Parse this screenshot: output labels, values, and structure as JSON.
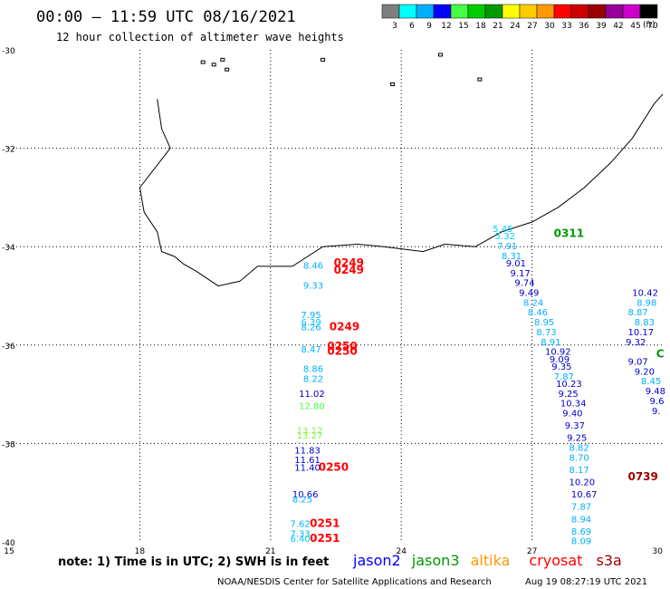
{
  "header": {
    "title": "00:00 — 11:59 UTC 08/16/2021",
    "subtitle": "12 hour collection of altimeter wave heights"
  },
  "colorbar": {
    "unit": "(ft)",
    "labels": [
      "3",
      "6",
      "9",
      "12",
      "15",
      "18",
      "21",
      "24",
      "27",
      "30",
      "33",
      "36",
      "39",
      "42",
      "45",
      "70"
    ],
    "colors": [
      "#7f7f7f",
      "#00ffff",
      "#00b0ff",
      "#0000ff",
      "#44ff44",
      "#00cc00",
      "#009900",
      "#ffff00",
      "#ffcc00",
      "#ff9900",
      "#ff0000",
      "#cc0000",
      "#990000",
      "#990099",
      "#cc00cc",
      "#000000"
    ]
  },
  "map": {
    "lon_range": [
      15,
      30
    ],
    "lat_range": [
      -40,
      -30
    ],
    "x_ticks": [
      15,
      18,
      21,
      24,
      27,
      30
    ],
    "y_ticks": [
      -30,
      -32,
      -34,
      -36,
      -38,
      -40
    ],
    "coast": [
      [
        18.4,
        -31.0
      ],
      [
        18.5,
        -31.6
      ],
      [
        18.7,
        -32.0
      ],
      [
        18.0,
        -32.8
      ],
      [
        18.1,
        -33.3
      ],
      [
        18.4,
        -33.7
      ],
      [
        18.5,
        -34.1
      ],
      [
        18.8,
        -34.2
      ],
      [
        19.0,
        -34.35
      ],
      [
        19.3,
        -34.5
      ],
      [
        19.8,
        -34.8
      ],
      [
        20.3,
        -34.7
      ],
      [
        20.7,
        -34.4
      ],
      [
        21.5,
        -34.4
      ],
      [
        22.2,
        -34.0
      ],
      [
        23.0,
        -33.95
      ],
      [
        23.6,
        -34.0
      ],
      [
        24.5,
        -34.1
      ],
      [
        25.0,
        -33.95
      ],
      [
        25.7,
        -34.0
      ],
      [
        26.3,
        -33.7
      ],
      [
        27.0,
        -33.5
      ],
      [
        27.6,
        -33.2
      ],
      [
        28.2,
        -32.8
      ],
      [
        28.8,
        -32.3
      ],
      [
        29.3,
        -31.8
      ],
      [
        29.8,
        -31.1
      ],
      [
        30.0,
        -30.9
      ]
    ],
    "islands": [
      [
        19.45,
        -30.25
      ],
      [
        19.7,
        -30.3
      ],
      [
        19.9,
        -30.2
      ],
      [
        20.0,
        -30.4
      ],
      [
        22.2,
        -30.2
      ],
      [
        23.8,
        -30.7
      ],
      [
        24.9,
        -30.1
      ],
      [
        25.8,
        -30.6
      ]
    ]
  },
  "observations": [
    {
      "lon": 21.75,
      "lat": -34.45,
      "text": "8.46",
      "color": "#00b0ff"
    },
    {
      "lon": 21.75,
      "lat": -34.85,
      "text": "9.33",
      "color": "#00b0ff"
    },
    {
      "lon": 21.7,
      "lat": -35.45,
      "text": "7.95",
      "color": "#00b0ff"
    },
    {
      "lon": 21.7,
      "lat": -35.6,
      "text": "6.39",
      "color": "#00ccee"
    },
    {
      "lon": 21.7,
      "lat": -35.7,
      "text": "8.26",
      "color": "#00b0ff"
    },
    {
      "lon": 21.7,
      "lat": -36.15,
      "text": "8.47",
      "color": "#00b0ff"
    },
    {
      "lon": 21.75,
      "lat": -36.55,
      "text": "8.86",
      "color": "#00b0ff"
    },
    {
      "lon": 21.75,
      "lat": -36.75,
      "text": "8.22",
      "color": "#00b0ff"
    },
    {
      "lon": 21.65,
      "lat": -37.05,
      "text": "11.02",
      "color": "#0000cc"
    },
    {
      "lon": 21.65,
      "lat": -37.3,
      "text": "12.80",
      "color": "#44ff44"
    },
    {
      "lon": 21.6,
      "lat": -37.8,
      "text": "13.12",
      "color": "#88ee44"
    },
    {
      "lon": 21.6,
      "lat": -37.9,
      "text": "13.27",
      "color": "#88ee44"
    },
    {
      "lon": 21.55,
      "lat": -38.2,
      "text": "11.83",
      "color": "#0000cc"
    },
    {
      "lon": 21.55,
      "lat": -38.4,
      "text": "11.61",
      "color": "#0000cc"
    },
    {
      "lon": 21.55,
      "lat": -38.55,
      "text": "11.40",
      "color": "#0000cc"
    },
    {
      "lon": 21.5,
      "lat": -39.1,
      "text": "10.66",
      "color": "#0000cc"
    },
    {
      "lon": 21.5,
      "lat": -39.2,
      "text": "8.25",
      "color": "#00b0ff"
    },
    {
      "lon": 21.45,
      "lat": -39.7,
      "text": "7.62",
      "color": "#00b0ff"
    },
    {
      "lon": 21.45,
      "lat": -39.9,
      "text": "7.33",
      "color": "#00b0ff"
    },
    {
      "lon": 21.45,
      "lat": -40.0,
      "text": "6.40",
      "color": "#00ccee"
    },
    {
      "lon": 26.1,
      "lat": -33.7,
      "text": "5.45",
      "color": "#00ccee"
    },
    {
      "lon": 26.15,
      "lat": -33.85,
      "text": "5.32",
      "color": "#00ccee"
    },
    {
      "lon": 26.2,
      "lat": -34.05,
      "text": "7.91",
      "color": "#00b0ff"
    },
    {
      "lon": 26.3,
      "lat": -34.25,
      "text": "8.31",
      "color": "#00b0ff"
    },
    {
      "lon": 26.4,
      "lat": -34.4,
      "text": "9.01",
      "color": "#0000cc"
    },
    {
      "lon": 26.5,
      "lat": -34.6,
      "text": "9.17",
      "color": "#0000cc"
    },
    {
      "lon": 26.6,
      "lat": -34.8,
      "text": "9.74",
      "color": "#0000cc"
    },
    {
      "lon": 26.7,
      "lat": -35.0,
      "text": "9.49",
      "color": "#0000cc"
    },
    {
      "lon": 26.8,
      "lat": -35.2,
      "text": "8.24",
      "color": "#00b0ff"
    },
    {
      "lon": 26.9,
      "lat": -35.4,
      "text": "8.46",
      "color": "#00b0ff"
    },
    {
      "lon": 27.05,
      "lat": -35.6,
      "text": "8.95",
      "color": "#00b0ff"
    },
    {
      "lon": 27.1,
      "lat": -35.8,
      "text": "8.73",
      "color": "#00b0ff"
    },
    {
      "lon": 27.2,
      "lat": -36.0,
      "text": "8.91",
      "color": "#00b0ff"
    },
    {
      "lon": 27.3,
      "lat": -36.2,
      "text": "10.92",
      "color": "#0000cc"
    },
    {
      "lon": 27.4,
      "lat": -36.35,
      "text": "9.09",
      "color": "#0000cc"
    },
    {
      "lon": 27.45,
      "lat": -36.5,
      "text": "9.35",
      "color": "#0000cc"
    },
    {
      "lon": 27.5,
      "lat": -36.7,
      "text": "7.87",
      "color": "#00b0ff"
    },
    {
      "lon": 27.55,
      "lat": -36.85,
      "text": "10.23",
      "color": "#0000cc"
    },
    {
      "lon": 27.6,
      "lat": -37.05,
      "text": "9.25",
      "color": "#0000cc"
    },
    {
      "lon": 27.65,
      "lat": -37.25,
      "text": "10.34",
      "color": "#0000cc"
    },
    {
      "lon": 27.7,
      "lat": -37.45,
      "text": "9.40",
      "color": "#0000cc"
    },
    {
      "lon": 27.75,
      "lat": -37.7,
      "text": "9.37",
      "color": "#0000cc"
    },
    {
      "lon": 27.8,
      "lat": -37.95,
      "text": "9.25",
      "color": "#0000cc"
    },
    {
      "lon": 27.85,
      "lat": -38.15,
      "text": "8.82",
      "color": "#00b0ff"
    },
    {
      "lon": 27.85,
      "lat": -38.35,
      "text": "8.70",
      "color": "#00b0ff"
    },
    {
      "lon": 27.85,
      "lat": -38.6,
      "text": "8.17",
      "color": "#00b0ff"
    },
    {
      "lon": 27.85,
      "lat": -38.85,
      "text": "10.20",
      "color": "#0000cc"
    },
    {
      "lon": 27.9,
      "lat": -39.1,
      "text": "10.67",
      "color": "#0000cc"
    },
    {
      "lon": 27.9,
      "lat": -39.35,
      "text": "7.87",
      "color": "#00b0ff"
    },
    {
      "lon": 27.9,
      "lat": -39.6,
      "text": "8.94",
      "color": "#00b0ff"
    },
    {
      "lon": 27.9,
      "lat": -39.85,
      "text": "8.69",
      "color": "#00b0ff"
    },
    {
      "lon": 27.9,
      "lat": -40.05,
      "text": "8.09",
      "color": "#00b0ff"
    },
    {
      "lon": 29.3,
      "lat": -35.0,
      "text": "10.42",
      "color": "#0000cc"
    },
    {
      "lon": 29.4,
      "lat": -35.2,
      "text": "8.98",
      "color": "#00b0ff"
    },
    {
      "lon": 29.2,
      "lat": -35.4,
      "text": "8.87",
      "color": "#00b0ff"
    },
    {
      "lon": 29.35,
      "lat": -35.6,
      "text": "8.83",
      "color": "#00b0ff"
    },
    {
      "lon": 29.2,
      "lat": -35.8,
      "text": "10.17",
      "color": "#0000cc"
    },
    {
      "lon": 29.15,
      "lat": -36.0,
      "text": "9.32",
      "color": "#0000cc"
    },
    {
      "lon": 29.2,
      "lat": -36.4,
      "text": "9.07",
      "color": "#0000cc"
    },
    {
      "lon": 29.35,
      "lat": -36.6,
      "text": "9.20",
      "color": "#0000cc"
    },
    {
      "lon": 29.5,
      "lat": -36.8,
      "text": "8.45",
      "color": "#00b0ff"
    },
    {
      "lon": 29.6,
      "lat": -37.0,
      "text": "9.48",
      "color": "#0000cc"
    },
    {
      "lon": 29.7,
      "lat": -37.2,
      "text": "9.6",
      "color": "#0000cc"
    },
    {
      "lon": 29.75,
      "lat": -37.4,
      "text": "9.",
      "color": "#0000cc"
    }
  ],
  "passes": [
    {
      "lon": 22.45,
      "lat": -34.4,
      "text": "0249",
      "color": "#ff0000"
    },
    {
      "lon": 22.45,
      "lat": -34.55,
      "text": "0249",
      "color": "#ff0000"
    },
    {
      "lon": 22.35,
      "lat": -35.7,
      "text": "0249",
      "color": "#ff0000"
    },
    {
      "lon": 22.3,
      "lat": -36.1,
      "text": "0250",
      "color": "#ff0000"
    },
    {
      "lon": 22.3,
      "lat": -36.2,
      "text": "0250",
      "color": "#ff0000"
    },
    {
      "lon": 22.1,
      "lat": -38.55,
      "text": "0250",
      "color": "#ff0000"
    },
    {
      "lon": 21.9,
      "lat": -39.7,
      "text": "0251",
      "color": "#ff0000"
    },
    {
      "lon": 21.9,
      "lat": -40.0,
      "text": "0251",
      "color": "#ff0000"
    },
    {
      "lon": 27.5,
      "lat": -33.8,
      "text": "0311",
      "color": "#009900"
    },
    {
      "lon": 29.2,
      "lat": -38.75,
      "text": "0739",
      "color": "#990000"
    }
  ],
  "edge_marks": [
    {
      "lon": 29.85,
      "lat": -36.25,
      "text": "C",
      "color": "#009900"
    }
  ],
  "footer": {
    "note": "note: 1) Time is in UTC; 2) SWH is in feet",
    "legend": [
      {
        "label": "jason2",
        "color": "#0000ff"
      },
      {
        "label": "jason3",
        "color": "#009900"
      },
      {
        "label": "altika",
        "color": "#ff9900"
      },
      {
        "label": "cryosat",
        "color": "#ff0000"
      },
      {
        "label": "s3a",
        "color": "#990000"
      }
    ],
    "credit": "NOAA/NESDIS Center for Satellite Applications and Research",
    "timestamp": "Aug 19 08:27:19 UTC 2021"
  }
}
